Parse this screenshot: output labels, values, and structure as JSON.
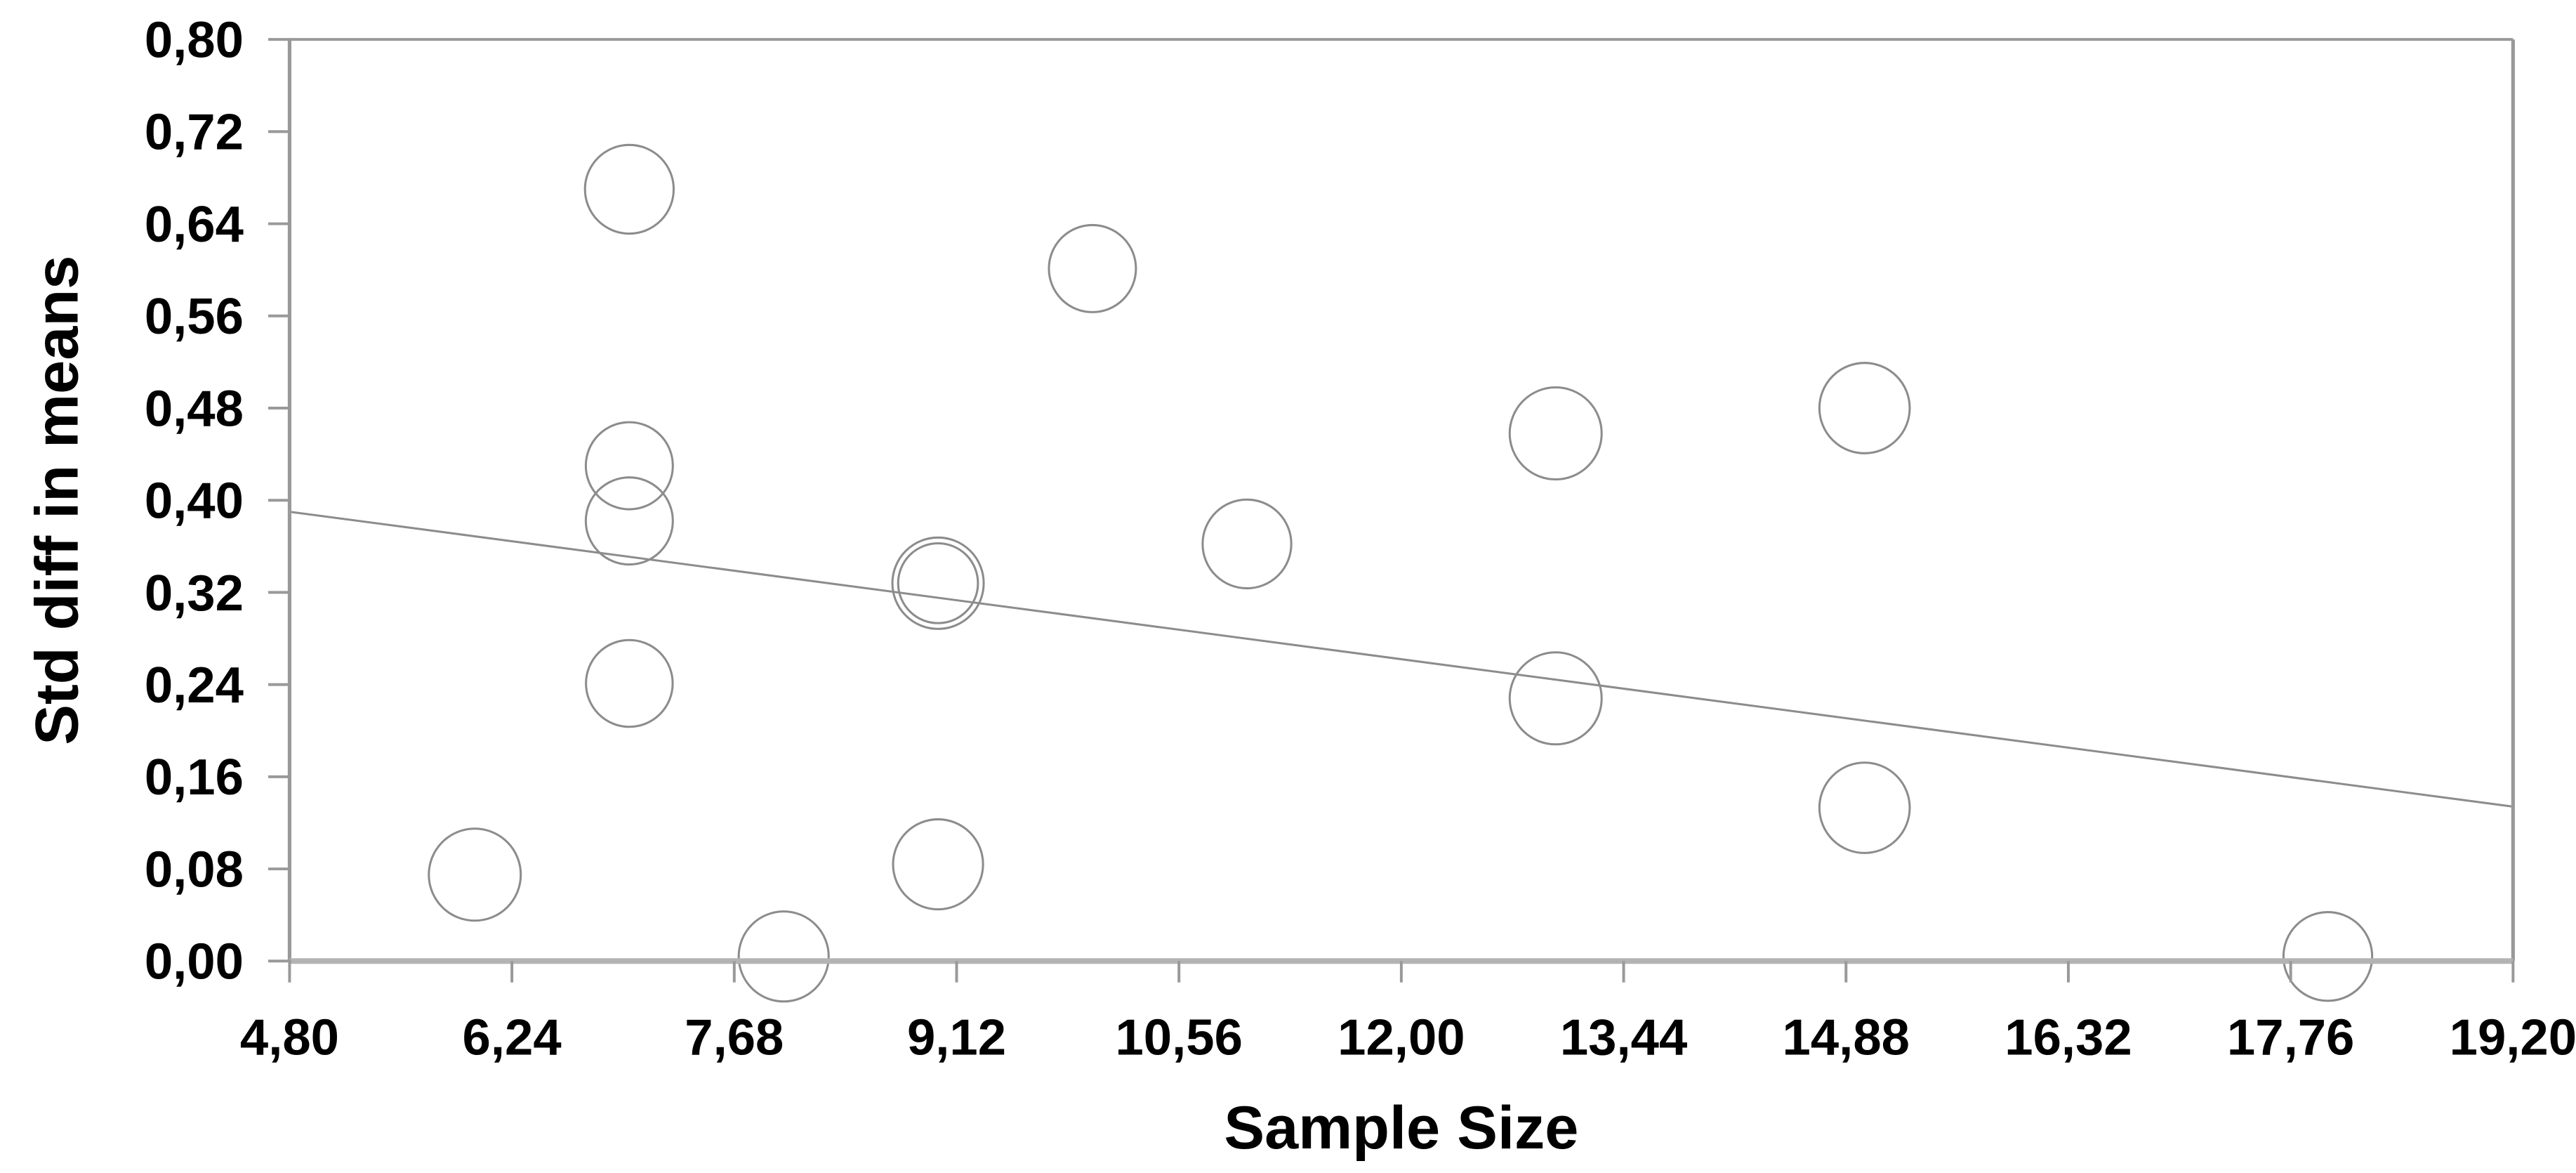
{
  "chart_data": {
    "type": "scatter",
    "title": "",
    "xlabel": "Sample Size",
    "ylabel": "Std diff in means",
    "xlim": [
      4.8,
      19.2
    ],
    "ylim": [
      0.0,
      0.8
    ],
    "grid": false,
    "legend": null,
    "decimal_separator": ",",
    "x_ticks": [
      4.8,
      6.24,
      7.68,
      9.12,
      10.56,
      12.0,
      13.44,
      14.88,
      16.32,
      17.76,
      19.2
    ],
    "x_tick_labels": [
      "4,80",
      "6,24",
      "7,68",
      "9,12",
      "10,56",
      "12,00",
      "13,44",
      "14,88",
      "16,32",
      "17,76",
      "19,20"
    ],
    "y_ticks": [
      0.0,
      0.08,
      0.16,
      0.24,
      0.32,
      0.4,
      0.48,
      0.56,
      0.64,
      0.72,
      0.8
    ],
    "y_tick_labels": [
      "0,00",
      "0,08",
      "0,16",
      "0,24",
      "0,32",
      "0,40",
      "0,48",
      "0,56",
      "0,64",
      "0,72",
      "0,80"
    ],
    "points": [
      {
        "x": 7,
        "y": 0.67,
        "r": 27.0
      },
      {
        "x": 10,
        "y": 0.601,
        "r": 26.5
      },
      {
        "x": 15,
        "y": 0.48,
        "r": 27.5
      },
      {
        "x": 13,
        "y": 0.458,
        "r": 28.0
      },
      {
        "x": 7,
        "y": 0.43,
        "r": 26.5
      },
      {
        "x": 7,
        "y": 0.382,
        "r": 26.5
      },
      {
        "x": 11,
        "y": 0.362,
        "r": 27.0
      },
      {
        "x": 9,
        "y": 0.328,
        "r": 27.8
      },
      {
        "x": 9,
        "y": 0.328,
        "r": 24.3
      },
      {
        "x": 7,
        "y": 0.241,
        "r": 26.4
      },
      {
        "x": 13,
        "y": 0.228,
        "r": 28.0
      },
      {
        "x": 15,
        "y": 0.133,
        "r": 27.5
      },
      {
        "x": 9,
        "y": 0.084,
        "r": 27.4
      },
      {
        "x": 6,
        "y": 0.075,
        "r": 28.0
      },
      {
        "x": 8,
        "y": 0.004,
        "r": 27.4
      },
      {
        "x": 18,
        "y": 0.004,
        "r": 27.0
      }
    ],
    "regression_line": {
      "x1": 4.8,
      "y1": 0.39,
      "x2": 19.2,
      "y2": 0.134
    }
  },
  "colors": {
    "background": "#ffffff",
    "circle_stroke": "#8c8c8c",
    "regression_line": "#8c8c8c",
    "box_border": "#999999",
    "bottom_axis": "#b3b3b3",
    "tick": "#999999",
    "text": "#000000"
  }
}
